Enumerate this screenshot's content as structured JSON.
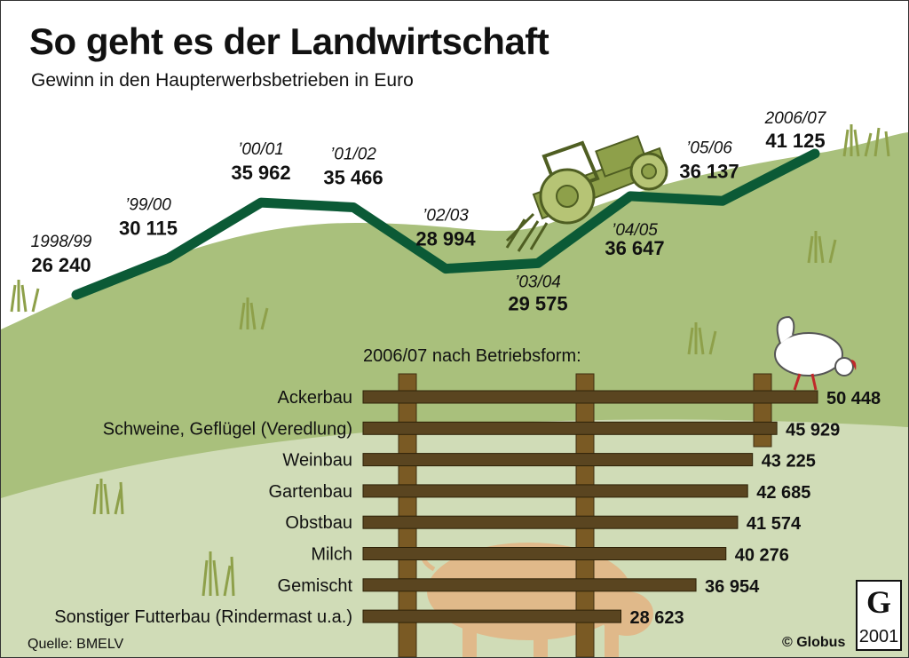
{
  "title": "So geht es der Landwirtschaft",
  "subtitle": "Gewinn in den Haupterwerbsbetrieben in Euro",
  "source": "Quelle: BMELV",
  "credit": "© Globus",
  "logo": {
    "letter": "G",
    "number": "2001"
  },
  "colors": {
    "line": "#0b5a36",
    "bar": "#5a4520",
    "post": "#7a5a24",
    "hill": "#a9c07c",
    "pig": "#e0b98a",
    "tractor": "#8ea04a"
  },
  "chart_data": [
    {
      "type": "line",
      "title": "Gewinn in den Haupterwerbsbetrieben in Euro",
      "x": [
        "1998/99",
        "’99/00",
        "’00/01",
        "’01/02",
        "’02/03",
        "’03/04",
        "’04/05",
        "’05/06",
        "2006/07"
      ],
      "x_labels": [
        "1998/99",
        "’99/00",
        "’00/01",
        "’01/02",
        "’02/03",
        "’03/04",
        "’04/05",
        "’05/06",
        "2006/07"
      ],
      "values": [
        26240,
        30115,
        35962,
        35466,
        28994,
        29575,
        36647,
        36137,
        41125
      ],
      "value_labels": [
        "26 240",
        "30 115",
        "35 962",
        "35 466",
        "28 994",
        "29 575",
        "36 647",
        "36 137",
        "41 125"
      ],
      "grid": false
    },
    {
      "type": "bar",
      "orientation": "horizontal",
      "title": "2006/07 nach Betriebsform:",
      "categories": [
        "Ackerbau",
        "Schweine, Geflügel (Veredlung)",
        "Weinbau",
        "Gartenbau",
        "Obstbau",
        "Milch",
        "Gemischt",
        "Sonstiger Futterbau (Rindermast u.a.)"
      ],
      "values": [
        50448,
        45929,
        43225,
        42685,
        41574,
        40276,
        36954,
        28623
      ],
      "value_labels": [
        "50 448",
        "45 929",
        "43 225",
        "42 685",
        "41 574",
        "40 276",
        "36 954",
        "28 623"
      ],
      "grid": false
    }
  ]
}
